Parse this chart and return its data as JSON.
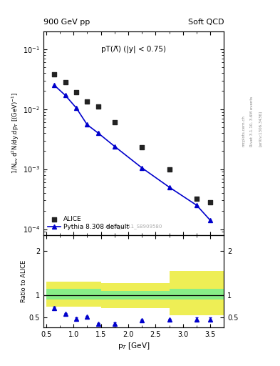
{
  "title_left": "900 GeV pp",
  "title_right": "Soft QCD",
  "annotation": "pT(Λ̅) (|y| < 0.75)",
  "watermark": "ALICE_2011_S8909580",
  "ylabel_main": "1/N$_{ev}$ d$^{2}$N/dy.dp$_{T}$ [(GeV)$^{-1}$]",
  "ylabel_ratio": "Ratio to ALICE",
  "xlabel": "p$_{T}$ [GeV]",
  "rivet_label": "Rivet 3.1.10, 3.6M events",
  "arxiv_label": "[arXiv:1306.3436]",
  "mcplots_label": "mcplots.cern.ch",
  "alice_x": [
    0.65,
    0.85,
    1.05,
    1.25,
    1.45,
    1.75,
    2.25,
    2.75,
    3.25,
    3.5
  ],
  "alice_y": [
    0.038,
    0.028,
    0.019,
    0.0135,
    0.011,
    0.006,
    0.0023,
    0.001,
    0.00032,
    0.00028
  ],
  "pythia_x": [
    0.65,
    0.85,
    1.05,
    1.25,
    1.45,
    1.75,
    2.25,
    2.75,
    3.25,
    3.5
  ],
  "pythia_y": [
    0.025,
    0.017,
    0.0105,
    0.0055,
    0.004,
    0.0024,
    0.00105,
    0.0005,
    0.00025,
    0.00014
  ],
  "ratio_x": [
    0.65,
    0.85,
    1.05,
    1.25,
    1.45,
    1.75,
    2.25,
    2.75,
    3.25,
    3.5
  ],
  "ratio_y": [
    0.72,
    0.58,
    0.48,
    0.52,
    0.36,
    0.37,
    0.44,
    0.46,
    0.46,
    0.46
  ],
  "ratio_yerr": [
    0.02,
    0.02,
    0.02,
    0.02,
    0.02,
    0.02,
    0.02,
    0.02,
    0.04,
    0.04
  ],
  "band_edges": [
    0.5,
    1.0,
    1.5,
    2.0,
    2.75,
    3.75
  ],
  "band_green_lo": [
    0.9,
    0.9,
    0.9,
    0.9,
    0.9
  ],
  "band_green_hi": [
    1.15,
    1.15,
    1.1,
    1.1,
    1.15
  ],
  "band_yellow_lo": [
    0.75,
    0.75,
    0.72,
    0.72,
    0.55
  ],
  "band_yellow_hi": [
    1.3,
    1.3,
    1.28,
    1.28,
    1.55
  ],
  "ylim_main": [
    8e-05,
    0.2
  ],
  "ylim_ratio": [
    0.28,
    2.35
  ],
  "xlim": [
    0.45,
    3.75
  ],
  "color_alice": "#222222",
  "color_pythia": "#0000cc",
  "color_green": "#88ee88",
  "color_yellow": "#eeee55",
  "color_line": "#000000",
  "marker_alice": "s",
  "marker_pythia": "^",
  "background": "#ffffff"
}
